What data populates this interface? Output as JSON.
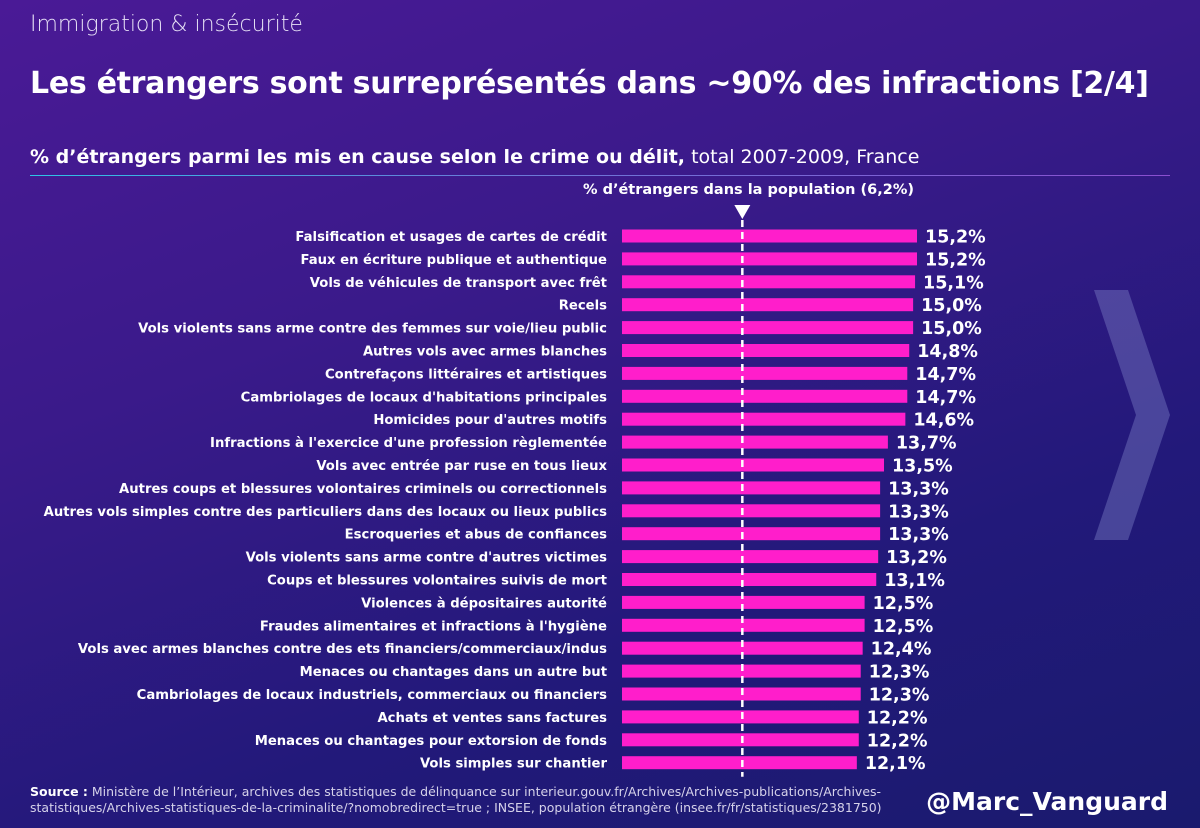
{
  "header": {
    "topic": "Immigration & insécurité",
    "title": "Les étrangers sont surreprésentés dans ~90% des infractions [2/4]",
    "subtitle_bold": "% d’étrangers parmi les mis en cause selon le crime ou délit,",
    "subtitle_rest": " total 2007-2009, France"
  },
  "chart_data": {
    "type": "bar",
    "orientation": "horizontal",
    "title": "% d’étrangers parmi les mis en cause selon le crime ou délit, total 2007-2009, France",
    "reference_line": {
      "label": "% d’étrangers dans la population (6,2%)",
      "value": 6.2
    },
    "categories": [
      "Falsification et usages de cartes de crédit",
      "Faux en écriture publique et authentique",
      "Vols de véhicules de transport avec frêt",
      "Recels",
      "Vols violents sans arme contre des femmes sur voie/lieu public",
      "Autres vols avec armes blanches",
      "Contrefaçons littéraires et artistiques",
      "Cambriolages de locaux d'habitations principales",
      "Homicides pour d'autres motifs",
      "Infractions à l'exercice d'une profession règlementée",
      "Vols avec entrée par ruse en tous lieux",
      "Autres coups et blessures volontaires criminels ou correctionnels",
      "Autres vols simples contre des particuliers dans des locaux ou lieux publics",
      "Escroqueries et abus de confiances",
      "Vols violents sans arme contre d'autres victimes",
      "Coups et blessures volontaires suivis de mort",
      "Violences à dépositaires autorité",
      "Fraudes alimentaires et infractions à l'hygiène",
      "Vols avec armes blanches contre des ets financiers/commerciaux/indus",
      "Menaces ou chantages dans un autre but",
      "Cambriolages de locaux industriels, commerciaux ou financiers",
      "Achats et ventes sans factures",
      "Menaces ou chantages pour extorsion de fonds",
      "Vols simples sur chantier"
    ],
    "values": [
      15.2,
      15.2,
      15.1,
      15.0,
      15.0,
      14.8,
      14.7,
      14.7,
      14.6,
      13.7,
      13.5,
      13.3,
      13.3,
      13.3,
      13.2,
      13.1,
      12.5,
      12.5,
      12.4,
      12.3,
      12.3,
      12.2,
      12.2,
      12.1
    ],
    "value_labels": [
      "15,2%",
      "15,2%",
      "15,1%",
      "15,0%",
      "15,0%",
      "14,8%",
      "14,7%",
      "14,7%",
      "14,6%",
      "13,7%",
      "13,5%",
      "13,3%",
      "13,3%",
      "13,3%",
      "13,2%",
      "13,1%",
      "12,5%",
      "12,5%",
      "12,4%",
      "12,3%",
      "12,3%",
      "12,2%",
      "12,2%",
      "12,1%"
    ],
    "xlim": [
      0,
      15.2
    ],
    "bar_color": "#ff1ecb"
  },
  "footer": {
    "source_label": "Source :",
    "source_text": " Ministère de l’Intérieur, archives des statistiques de délinquance sur interieur.gouv.fr/Archives/Archives-publications/Archives-statistiques/Archives-statistiques-de-la-criminalite/?nomobredirect=true ; INSEE, population étrangère (insee.fr/fr/statistiques/2381750)",
    "handle": "@Marc_Vanguard"
  },
  "colors": {
    "bar": "#ff1ecb",
    "reference_line": "#ffffff",
    "divider_start": "#2ec4e6",
    "divider_end": "#8a4fd0"
  },
  "icons": {
    "reference_marker": "triangle-down-icon",
    "next": "chevron-right-icon"
  }
}
